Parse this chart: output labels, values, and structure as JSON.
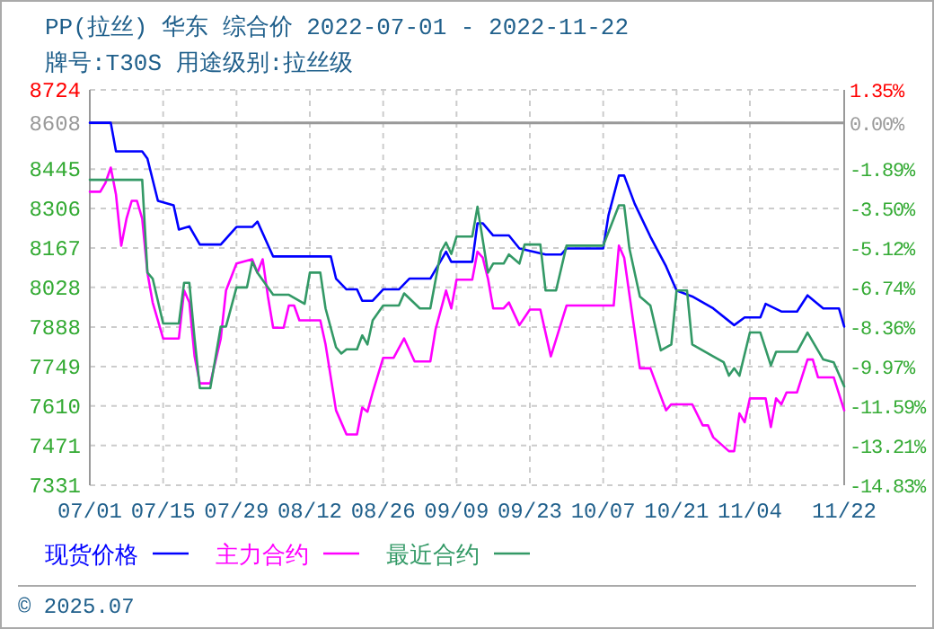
{
  "chart_data": {
    "type": "line",
    "title": "PP(拉丝) 华东 综合价 2022-07-01 - 2022-11-22",
    "subtitle": "牌号:T30S 用途级别:拉丝级",
    "xlim": [
      "2022-07-01",
      "2022-11-22"
    ],
    "xticks": [
      {
        "value": "2022-07-01",
        "label": "07/01"
      },
      {
        "value": "2022-07-15",
        "label": "07/15"
      },
      {
        "value": "2022-07-29",
        "label": "07/29"
      },
      {
        "value": "2022-08-12",
        "label": "08/12"
      },
      {
        "value": "2022-08-26",
        "label": "08/26"
      },
      {
        "value": "2022-09-09",
        "label": "09/09"
      },
      {
        "value": "2022-09-23",
        "label": "09/23"
      },
      {
        "value": "2022-10-07",
        "label": "10/07"
      },
      {
        "value": "2022-10-21",
        "label": "10/21"
      },
      {
        "value": "2022-11-04",
        "label": "11/04"
      },
      {
        "value": "2022-11-22",
        "label": "11/22"
      }
    ],
    "ylim": [
      7331,
      8724
    ],
    "yticks": [
      8724,
      8608,
      8445,
      8306,
      8167,
      8028,
      7888,
      7749,
      7610,
      7471,
      7331
    ],
    "y2lim": [
      -14.83,
      1.35
    ],
    "y2ticks": [
      {
        "value": 1.35,
        "label": "1.35%"
      },
      {
        "value": 0,
        "label": "0.00%"
      },
      {
        "value": -1.89,
        "label": "-1.89%"
      },
      {
        "value": -3.5,
        "label": "-3.50%"
      },
      {
        "value": -5.12,
        "label": "-5.12%"
      },
      {
        "value": -6.74,
        "label": "-6.74%"
      },
      {
        "value": -8.36,
        "label": "-8.36%"
      },
      {
        "value": -9.97,
        "label": "-9.97%"
      },
      {
        "value": -11.59,
        "label": "-11.59%"
      },
      {
        "value": -13.21,
        "label": "-13.21%"
      },
      {
        "value": -14.83,
        "label": "-14.83%"
      }
    ],
    "ref_lines": [
      {
        "axis": "y",
        "value": 8608,
        "color": "#999999"
      }
    ],
    "grid": true,
    "legend": "bottom",
    "annotations": [
      "© 2025.07"
    ],
    "series": [
      {
        "name": "现货价格",
        "color": "#0000ff",
        "x": [
          "2022-07-01",
          "2022-07-05",
          "2022-07-06",
          "2022-07-11",
          "2022-07-12",
          "2022-07-14",
          "2022-07-17",
          "2022-07-18",
          "2022-07-20",
          "2022-07-22",
          "2022-07-26",
          "2022-07-29",
          "2022-08-01",
          "2022-08-02",
          "2022-08-05",
          "2022-08-16",
          "2022-08-17",
          "2022-08-19",
          "2022-08-21",
          "2022-08-22",
          "2022-08-24",
          "2022-08-26",
          "2022-08-29",
          "2022-08-31",
          "2022-09-04",
          "2022-09-07",
          "2022-09-08",
          "2022-09-12",
          "2022-09-13",
          "2022-09-14",
          "2022-09-16",
          "2022-09-19",
          "2022-09-21",
          "2022-09-26",
          "2022-09-29",
          "2022-09-30",
          "2022-10-07",
          "2022-10-08",
          "2022-10-10",
          "2022-10-11",
          "2022-10-13",
          "2022-10-16",
          "2022-10-19",
          "2022-10-21",
          "2022-10-24",
          "2022-10-28",
          "2022-11-01",
          "2022-11-03",
          "2022-11-06",
          "2022-11-07",
          "2022-11-10",
          "2022-11-13",
          "2022-11-15",
          "2022-11-18",
          "2022-11-21",
          "2022-11-22"
        ],
        "values": [
          8608,
          8608,
          8507,
          8507,
          8482,
          8333,
          8317,
          8232,
          8243,
          8179,
          8179,
          8241,
          8241,
          8260,
          8137,
          8137,
          8059,
          8021,
          8021,
          7981,
          7981,
          8021,
          8021,
          8059,
          8059,
          8154,
          8118,
          8118,
          8254,
          8254,
          8211,
          8211,
          8165,
          8144,
          8144,
          8165,
          8165,
          8281,
          8422,
          8422,
          8323,
          8207,
          8102,
          8017,
          7996,
          7954,
          7895,
          7922,
          7922,
          7970,
          7943,
          7943,
          8000,
          7954,
          7954,
          7890
        ]
      },
      {
        "name": "主力合约",
        "color": "#ff00ff",
        "x": [
          "2022-07-01",
          "2022-07-03",
          "2022-07-04",
          "2022-07-05",
          "2022-07-06",
          "2022-07-07",
          "2022-07-08",
          "2022-07-09",
          "2022-07-10",
          "2022-07-11",
          "2022-07-12",
          "2022-07-13",
          "2022-07-15",
          "2022-07-18",
          "2022-07-19",
          "2022-07-20",
          "2022-07-21",
          "2022-07-22",
          "2022-07-24",
          "2022-07-26",
          "2022-07-27",
          "2022-07-29",
          "2022-08-01",
          "2022-08-02",
          "2022-08-03",
          "2022-08-04",
          "2022-08-05",
          "2022-08-07",
          "2022-08-08",
          "2022-08-09",
          "2022-08-10",
          "2022-08-14",
          "2022-08-15",
          "2022-08-17",
          "2022-08-19",
          "2022-08-21",
          "2022-08-22",
          "2022-08-23",
          "2022-08-24",
          "2022-08-26",
          "2022-08-28",
          "2022-08-30",
          "2022-09-01",
          "2022-09-04",
          "2022-09-05",
          "2022-09-07",
          "2022-09-08",
          "2022-09-09",
          "2022-09-12",
          "2022-09-13",
          "2022-09-14",
          "2022-09-15",
          "2022-09-16",
          "2022-09-18",
          "2022-09-19",
          "2022-09-21",
          "2022-09-23",
          "2022-09-25",
          "2022-09-27",
          "2022-09-30",
          "2022-10-09",
          "2022-10-10",
          "2022-10-11",
          "2022-10-14",
          "2022-10-16",
          "2022-10-19",
          "2022-10-20",
          "2022-10-24",
          "2022-10-26",
          "2022-10-27",
          "2022-10-28",
          "2022-10-31",
          "2022-11-01",
          "2022-11-02",
          "2022-11-03",
          "2022-11-04",
          "2022-11-07",
          "2022-11-08",
          "2022-11-09",
          "2022-11-10",
          "2022-11-11",
          "2022-11-13",
          "2022-11-15",
          "2022-11-16",
          "2022-11-17",
          "2022-11-20",
          "2022-11-22"
        ],
        "values": [
          8365,
          8365,
          8397,
          8450,
          8355,
          8175,
          8270,
          8333,
          8333,
          8270,
          8080,
          7975,
          7848,
          7848,
          8017,
          7975,
          7785,
          7690,
          7690,
          7848,
          8017,
          8112,
          8127,
          8080,
          8127,
          7996,
          7886,
          7886,
          7964,
          7964,
          7912,
          7912,
          7827,
          7595,
          7510,
          7510,
          7605,
          7590,
          7658,
          7780,
          7780,
          7848,
          7767,
          7767,
          7880,
          8017,
          7954,
          8055,
          8055,
          8154,
          8133,
          8059,
          7954,
          7954,
          7975,
          7895,
          7950,
          7950,
          7785,
          7964,
          7964,
          8175,
          8133,
          7743,
          7743,
          7595,
          7616,
          7616,
          7542,
          7542,
          7500,
          7451,
          7451,
          7584,
          7553,
          7637,
          7637,
          7536,
          7637,
          7616,
          7658,
          7658,
          7774,
          7774,
          7711,
          7711,
          7595
        ]
      },
      {
        "name": "最近合约",
        "color": "#339966",
        "x": [
          "2022-07-01",
          "2022-07-11",
          "2022-07-12",
          "2022-07-13",
          "2022-07-15",
          "2022-07-18",
          "2022-07-19",
          "2022-07-20",
          "2022-07-21",
          "2022-07-22",
          "2022-07-24",
          "2022-07-26",
          "2022-07-27",
          "2022-07-29",
          "2022-07-31",
          "2022-08-01",
          "2022-08-02",
          "2022-08-05",
          "2022-08-08",
          "2022-08-11",
          "2022-08-12",
          "2022-08-14",
          "2022-08-15",
          "2022-08-17",
          "2022-08-18",
          "2022-08-19",
          "2022-08-21",
          "2022-08-22",
          "2022-08-23",
          "2022-08-24",
          "2022-08-26",
          "2022-08-29",
          "2022-08-30",
          "2022-09-02",
          "2022-09-04",
          "2022-09-06",
          "2022-09-07",
          "2022-09-08",
          "2022-09-09",
          "2022-09-12",
          "2022-09-13",
          "2022-09-15",
          "2022-09-16",
          "2022-09-18",
          "2022-09-19",
          "2022-09-21",
          "2022-09-22",
          "2022-09-25",
          "2022-09-26",
          "2022-09-28",
          "2022-09-30",
          "2022-10-07",
          "2022-10-10",
          "2022-10-11",
          "2022-10-12",
          "2022-10-14",
          "2022-10-16",
          "2022-10-18",
          "2022-10-20",
          "2022-10-21",
          "2022-10-23",
          "2022-10-24",
          "2022-10-28",
          "2022-10-30",
          "2022-10-31",
          "2022-11-01",
          "2022-11-02",
          "2022-11-04",
          "2022-11-06",
          "2022-11-08",
          "2022-11-09",
          "2022-11-13",
          "2022-11-15",
          "2022-11-18",
          "2022-11-20",
          "2022-11-22"
        ],
        "values": [
          8407,
          8407,
          8080,
          8059,
          7901,
          7901,
          8044,
          8044,
          7848,
          7673,
          7673,
          7890,
          7890,
          8028,
          8028,
          8118,
          8080,
          8002,
          8002,
          7970,
          8080,
          8080,
          7954,
          7817,
          7795,
          7810,
          7810,
          7859,
          7827,
          7912,
          7964,
          7964,
          8007,
          7954,
          7954,
          8154,
          8186,
          8146,
          8207,
          8207,
          8312,
          8080,
          8112,
          8112,
          8144,
          8112,
          8179,
          8179,
          8017,
          8017,
          8175,
          8175,
          8317,
          8317,
          8165,
          7996,
          7964,
          7806,
          7827,
          8017,
          8017,
          7827,
          7785,
          7764,
          7717,
          7743,
          7717,
          7869,
          7869,
          7753,
          7801,
          7801,
          7869,
          7774,
          7764,
          7679
        ]
      }
    ]
  }
}
